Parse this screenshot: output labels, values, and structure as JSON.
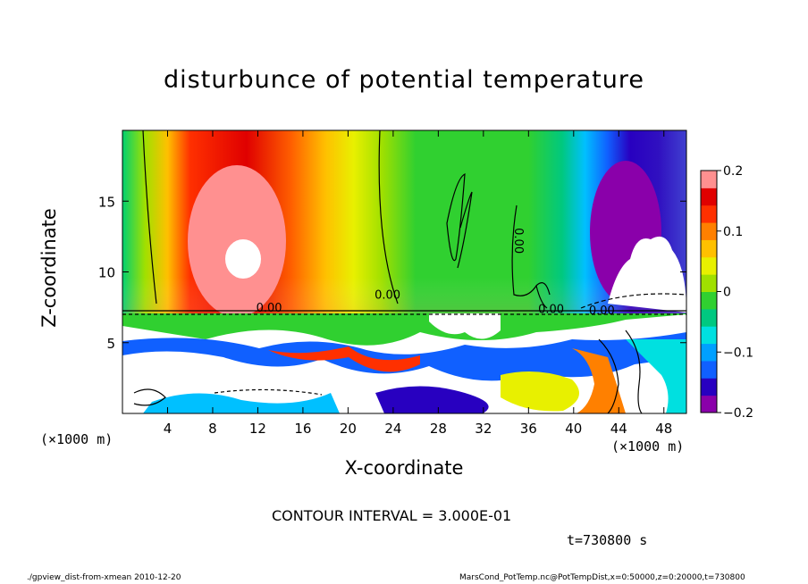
{
  "chart_data": {
    "type": "heatmap",
    "title": "disturbunce of potential temperature",
    "xlabel": "X-coordinate",
    "ylabel": "Z-coordinate",
    "x_unit_left": "(×1000 m)",
    "x_unit_right": "(×1000 m)",
    "xlim": [
      0,
      50
    ],
    "ylim": [
      0,
      20
    ],
    "x_ticks": [
      "4",
      "8",
      "12",
      "16",
      "20",
      "24",
      "28",
      "32",
      "36",
      "40",
      "44",
      "48"
    ],
    "y_ticks": [
      "5",
      "10",
      "15"
    ],
    "colorbar": {
      "range": [
        -0.2,
        0.2
      ],
      "ticks": [
        "0.2",
        "0.1",
        "0",
        "−0.1",
        "−0.2"
      ],
      "colors": [
        "#8a00aa",
        "#2800c0",
        "#1060ff",
        "#00a0ff",
        "#00e0e0",
        "#00c880",
        "#30d030",
        "#a0e000",
        "#e8f000",
        "#ffc000",
        "#ff8000",
        "#ff3000",
        "#e00000",
        "#ff9090"
      ]
    },
    "contour_labels": [
      "0.00",
      "0.00",
      "0.00",
      "0.00",
      "0.00"
    ],
    "contour_interval": "CONTOUR INTERVAL = 3.000E-01",
    "time_label": "t=730800 s",
    "footer_left": "./gpview_dist-from-xmean  2010-12-20",
    "footer_right": "MarsCond_PotTemp.nc@PotTempDist,x=0:50000,z=0:20000,t=730800"
  }
}
